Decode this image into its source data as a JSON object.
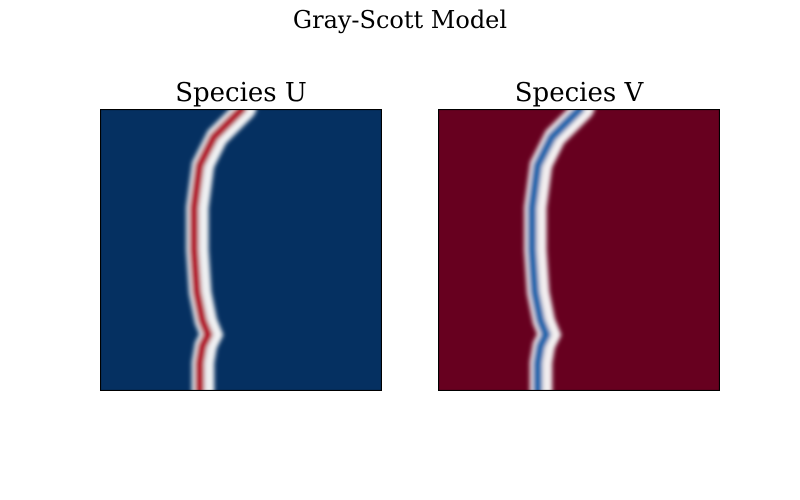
{
  "figure": {
    "suptitle": "Gray-Scott Model"
  },
  "colors": {
    "colormap": "RdBu_r",
    "dark_blue": "#053061",
    "dark_red": "#67001f",
    "white": "#f7f7f7",
    "frame": "#000000"
  },
  "chart_data": [
    {
      "type": "heatmap",
      "title": "Species U",
      "xlabel": "",
      "ylabel": "",
      "axes_visible": false,
      "background_color": "dark-blue",
      "stripe_colors_left_to_right": [
        "white",
        "red",
        "white"
      ],
      "front_x_fraction": [
        [
          0.0,
          0.5
        ],
        [
          0.05,
          0.45
        ],
        [
          0.1,
          0.4
        ],
        [
          0.2,
          0.35
        ],
        [
          0.35,
          0.33
        ],
        [
          0.5,
          0.33
        ],
        [
          0.65,
          0.34
        ],
        [
          0.75,
          0.36
        ],
        [
          0.8,
          0.38
        ],
        [
          0.84,
          0.36
        ],
        [
          0.9,
          0.35
        ],
        [
          1.0,
          0.35
        ]
      ]
    },
    {
      "type": "heatmap",
      "title": "Species V",
      "xlabel": "",
      "ylabel": "",
      "axes_visible": false,
      "background_color": "dark-red",
      "stripe_colors_left_to_right": [
        "white",
        "blue",
        "white"
      ],
      "front_x_fraction": [
        [
          0.0,
          0.5
        ],
        [
          0.05,
          0.45
        ],
        [
          0.1,
          0.4
        ],
        [
          0.2,
          0.35
        ],
        [
          0.35,
          0.33
        ],
        [
          0.5,
          0.33
        ],
        [
          0.65,
          0.34
        ],
        [
          0.75,
          0.36
        ],
        [
          0.8,
          0.38
        ],
        [
          0.84,
          0.36
        ],
        [
          0.9,
          0.35
        ],
        [
          1.0,
          0.35
        ]
      ]
    }
  ]
}
